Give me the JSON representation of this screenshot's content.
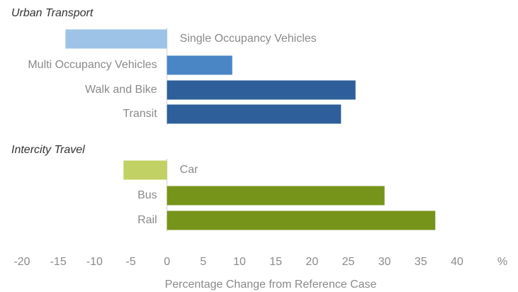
{
  "chart_data": {
    "type": "bar",
    "groups": [
      {
        "title": "Urban Transport",
        "categories": [
          "Single Occupancy Vehicles",
          "Multi Occupancy Vehicles",
          "Walk and Bike",
          "Transit"
        ],
        "values": [
          -14,
          9,
          26,
          24
        ],
        "colors": [
          "#9dc3e6",
          "#4a86c5",
          "#2e5f9a",
          "#2e5f9a"
        ]
      },
      {
        "title": "Intercity Travel",
        "categories": [
          "Car",
          "Bus",
          "Rail"
        ],
        "values": [
          -6,
          30,
          37
        ],
        "colors": [
          "#c2d164",
          "#77941a",
          "#77941a"
        ]
      }
    ],
    "xlim": [
      -20,
      40
    ],
    "xticks": [
      -20,
      -15,
      -10,
      -5,
      0,
      5,
      10,
      15,
      20,
      25,
      30,
      35,
      40
    ],
    "x_unit": "%",
    "xlabel": "Percentage Change from Reference Case"
  }
}
